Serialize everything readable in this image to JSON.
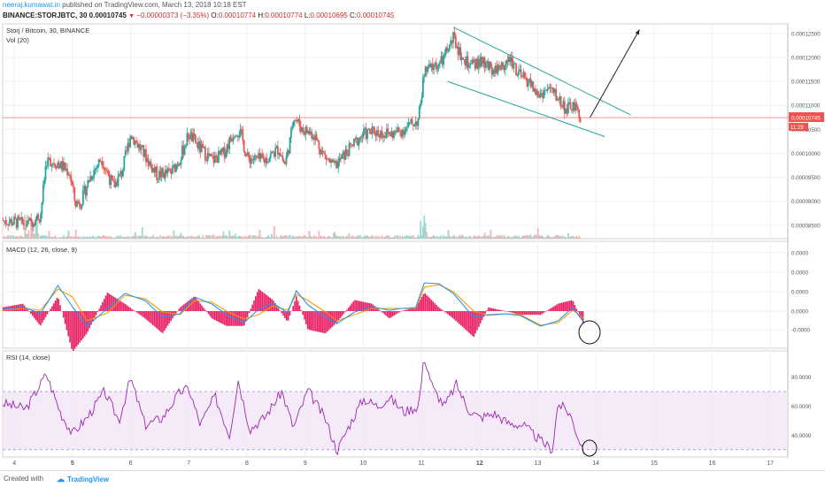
{
  "header": {
    "author": "neeraj.kumawat.in",
    "published_text": " published on TradingView.com, March 13, 2018 10:18 EST",
    "symbol_line": "BINANCE:STORJBTC, 30",
    "last": "0.00010745",
    "change": "−0.00000373 (−3.35%)",
    "ohlc": {
      "O": "0.00010774",
      "H": "0.00010774",
      "L": "0.00010695",
      "C": "0.00010745"
    }
  },
  "panes": {
    "price": {
      "title": "Storj / Bitcoin, 30, BINANCE",
      "vol_label": "Vol (20)"
    },
    "macd": {
      "title": "MACD (12, 26, close, 9)"
    },
    "rsi": {
      "title": "RSI (14, close)"
    }
  },
  "price_badge": {
    "value": "0.00010745",
    "countdown": "11:29"
  },
  "footer": {
    "created_with": "Created with",
    "brand": "TradingView"
  },
  "colors": {
    "up": "#26a69a",
    "down": "#ef5350",
    "macd": "#2196f3",
    "signal": "#ff9800",
    "hist": "#e91e63",
    "rsi": "#9c27b0",
    "trend": "#26a69a",
    "arrow": "#222"
  },
  "chart_data": [
    {
      "type": "candlestick",
      "title": "Storj / Bitcoin, 30, BINANCE",
      "x_ticks": [
        "4",
        "5",
        "6",
        "7",
        "8",
        "9",
        "10",
        "11",
        "12",
        "13",
        "14",
        "15",
        "16",
        "17"
      ],
      "x_range": [
        3.8,
        17.3
      ],
      "y_ticks": [
        "0.00012500",
        "0.00012000",
        "0.00011500",
        "0.00011000",
        "0.00010500",
        "0.00010000",
        "0.00009500",
        "0.00009000",
        "0.00008500"
      ],
      "ylim": [
        8.22e-05,
        0.000127
      ],
      "last_price": 0.00010745,
      "path_points": [
        [
          3.8,
          8.6e-05
        ],
        [
          4.1,
          8.55e-05
        ],
        [
          4.2,
          8.5e-05
        ],
        [
          4.45,
          8.7e-05
        ],
        [
          4.55,
          9.85e-05
        ],
        [
          4.75,
          9.8e-05
        ],
        [
          4.95,
          9.6e-05
        ],
        [
          5.05,
          8.95e-05
        ],
        [
          5.15,
          9e-05
        ],
        [
          5.3,
          9.5e-05
        ],
        [
          5.5,
          9.9e-05
        ],
        [
          5.7,
          9.3e-05
        ],
        [
          5.85,
          9.6e-05
        ],
        [
          6.0,
          0.000104
        ],
        [
          6.25,
          9.95e-05
        ],
        [
          6.45,
          9.55e-05
        ],
        [
          6.7,
          9.6e-05
        ],
        [
          6.85,
          9.9e-05
        ],
        [
          7.0,
          0.000104
        ],
        [
          7.2,
          0.000101
        ],
        [
          7.4,
          9.85e-05
        ],
        [
          7.6,
          0.0001
        ],
        [
          7.8,
          0.000105
        ],
        [
          7.9,
          0.000104
        ],
        [
          8.0,
          9.9e-05
        ],
        [
          8.3,
          9.85e-05
        ],
        [
          8.55,
          0.000101
        ],
        [
          8.65,
          9.75e-05
        ],
        [
          8.75,
          0.000103
        ],
        [
          8.8,
          0.000108
        ],
        [
          8.95,
          0.000105
        ],
        [
          9.15,
          0.000104
        ],
        [
          9.3,
          0.0001
        ],
        [
          9.5,
          9.7e-05
        ],
        [
          9.7,
          0.0001
        ],
        [
          10.0,
          0.000104
        ],
        [
          10.2,
          0.0001045
        ],
        [
          10.5,
          0.000104
        ],
        [
          10.7,
          0.000105
        ],
        [
          10.95,
          0.000107
        ],
        [
          11.05,
          0.000117
        ],
        [
          11.2,
          0.000118
        ],
        [
          11.35,
          0.000119
        ],
        [
          11.55,
          0.000124
        ],
        [
          11.7,
          0.00012
        ],
        [
          11.85,
          0.000118
        ],
        [
          12.0,
          0.000119
        ],
        [
          12.2,
          0.0001175
        ],
        [
          12.35,
          0.000118
        ],
        [
          12.55,
          0.0001195
        ],
        [
          12.7,
          0.000116
        ],
        [
          12.85,
          0.000115
        ],
        [
          13.0,
          0.000112
        ],
        [
          13.2,
          0.0001135
        ],
        [
          13.35,
          0.0001115
        ],
        [
          13.5,
          0.000109
        ],
        [
          13.6,
          0.00011
        ],
        [
          13.75,
          0.0001074
        ]
      ],
      "annotations": {
        "upper_trendline": [
          [
            11.55,
            0.0001263
          ],
          [
            14.6,
            0.000108
          ]
        ],
        "lower_trendline": [
          [
            11.45,
            0.000115
          ],
          [
            14.15,
            0.0001035
          ]
        ],
        "projection_arrow": [
          [
            13.9,
            0.0001075
          ],
          [
            14.75,
            0.0001258
          ]
        ]
      }
    },
    {
      "type": "line",
      "title": "MACD (12, 26, close, 9)",
      "y_ticks": [
        "0.0000",
        "0.0000",
        "0.0000",
        "0.0000",
        "-0.0000"
      ],
      "x": [
        3.8,
        4.15,
        4.45,
        4.75,
        5.0,
        5.25,
        5.6,
        5.9,
        6.25,
        6.55,
        6.85,
        7.1,
        7.4,
        7.65,
        7.95,
        8.2,
        8.45,
        8.7,
        8.85,
        9.05,
        9.35,
        9.55,
        9.85,
        10.15,
        10.45,
        10.65,
        10.9,
        11.05,
        11.3,
        11.55,
        11.9,
        12.15,
        12.45,
        12.7,
        13.05,
        13.35,
        13.6,
        13.8
      ],
      "series": [
        {
          "role": "macd",
          "values": [
            0.2,
            0.5,
            -0.3,
            2.9,
            0.5,
            -1.7,
            0.3,
            2.0,
            1.2,
            -0.7,
            -0.3,
            1.6,
            0.8,
            -0.4,
            -1.3,
            0.2,
            0.9,
            -0.2,
            2.3,
            0.7,
            -0.7,
            -1.4,
            -0.1,
            0.5,
            0.1,
            0.3,
            0.4,
            3.2,
            3.1,
            2.0,
            -0.7,
            -0.4,
            -0.3,
            -0.5,
            -1.7,
            -1.1,
            0.4,
            -1.3
          ]
        },
        {
          "role": "signal",
          "values": [
            0.1,
            0.3,
            0.1,
            2.5,
            1.6,
            -1.1,
            -0.2,
            1.8,
            1.4,
            -0.1,
            -0.4,
            1.2,
            1.0,
            0.0,
            -0.9,
            -0.4,
            0.6,
            0.1,
            1.9,
            1.2,
            -0.1,
            -1.1,
            -0.4,
            0.3,
            0.3,
            0.3,
            0.3,
            2.7,
            3.0,
            2.2,
            0.0,
            -0.5,
            -0.3,
            -0.4,
            -1.6,
            -1.3,
            0.1,
            -0.9
          ]
        }
      ]
    },
    {
      "type": "line",
      "title": "RSI (14, close)",
      "y_ticks": [
        "80.0000",
        "60.0000",
        "40.0000"
      ],
      "ylim": [
        25,
        98
      ],
      "bands": [
        30,
        70
      ],
      "x": [
        3.8,
        4.2,
        4.55,
        4.8,
        5.0,
        5.25,
        5.55,
        5.8,
        6.0,
        6.25,
        6.55,
        6.85,
        7.0,
        7.2,
        7.45,
        7.7,
        7.85,
        8.05,
        8.3,
        8.6,
        8.8,
        9.05,
        9.35,
        9.55,
        9.75,
        10.0,
        10.25,
        10.45,
        10.7,
        10.95,
        11.05,
        11.2,
        11.4,
        11.6,
        11.8,
        12.0,
        12.25,
        12.5,
        12.75,
        13.05,
        13.25,
        13.35,
        13.55,
        13.7,
        13.8
      ],
      "series": [
        {
          "role": "rsi",
          "values": [
            62,
            58,
            82,
            55,
            41,
            52,
            70,
            50,
            79,
            47,
            52,
            70,
            72,
            47,
            67,
            40,
            78,
            44,
            52,
            70,
            45,
            71,
            51,
            29,
            46,
            65,
            60,
            66,
            56,
            60,
            94,
            72,
            60,
            75,
            58,
            52,
            55,
            48,
            47,
            36,
            30,
            62,
            55,
            38,
            29
          ]
        }
      ]
    }
  ]
}
